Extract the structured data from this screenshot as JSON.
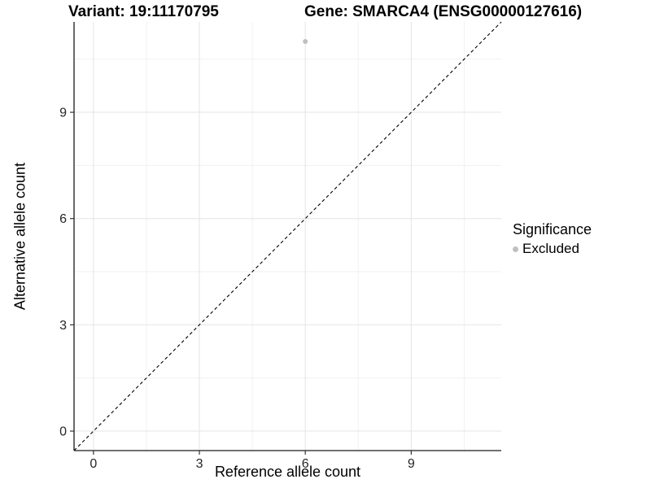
{
  "chart_data": {
    "type": "scatter",
    "titles": {
      "left": "Variant: 19:11170795",
      "right": "Gene: SMARCA4 (ENSG00000127616)"
    },
    "xlabel": "Reference allele count",
    "ylabel": "Alternative allele count",
    "x_ticks": [
      0,
      3,
      6,
      9
    ],
    "y_ticks": [
      0,
      3,
      6,
      9
    ],
    "xlim": [
      -0.55,
      11.55
    ],
    "ylim": [
      -0.55,
      11.55
    ],
    "grid": "major+minor",
    "points": [
      {
        "x": 6,
        "y": 11,
        "series": "Excluded"
      }
    ],
    "reference_line": {
      "type": "identity",
      "style": "dashed",
      "from": [
        -0.55,
        -0.55
      ],
      "to": [
        11.55,
        11.55
      ]
    },
    "legend": {
      "title": "Significance",
      "position": "right",
      "items": [
        {
          "label": "Excluded",
          "color": "#bfbfbf"
        }
      ]
    },
    "colors": {
      "point": "#bfbfbf",
      "grid_major": "#e4e4e4",
      "grid_minor": "#f1f1f1",
      "axis_line": "#1a1a1a",
      "tick_mark": "#333333",
      "tick_label": "#262626",
      "dashed_line": "#000000",
      "background": "#ffffff"
    }
  }
}
